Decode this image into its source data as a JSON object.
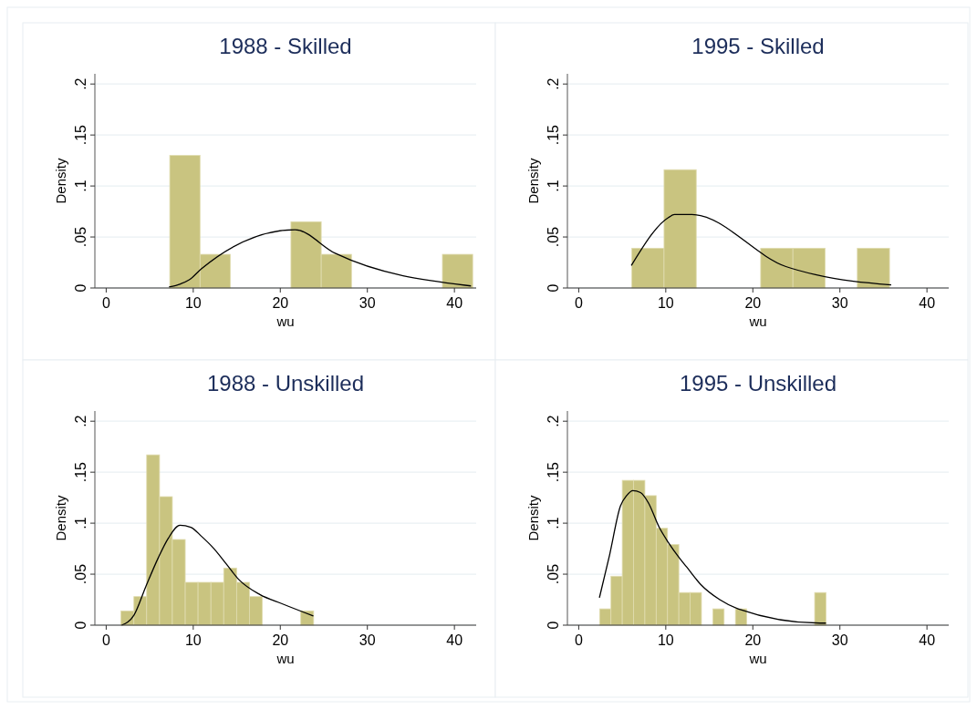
{
  "chart_data": [
    {
      "type": "histogram",
      "title": "1988 - Skilled",
      "xlabel": "wu",
      "ylabel": "Density",
      "xlim": [
        -1.3,
        42.5
      ],
      "xticks": [
        0,
        10,
        20,
        30,
        40
      ],
      "ylim": [
        0,
        0.21
      ],
      "yticks": [
        {
          "value": 0,
          "label": "0"
        },
        {
          "value": 0.05,
          "label": ".05"
        },
        {
          "value": 0.1,
          "label": ".1"
        },
        {
          "value": 0.15,
          "label": ".15"
        },
        {
          "value": 0.2,
          "label": ".2"
        }
      ],
      "grid": "y",
      "series": [
        {
          "color": "#c9c480",
          "bins": [
            7.3,
            10.78,
            14.26,
            17.74,
            21.22,
            24.7,
            28.18,
            31.66,
            35.14,
            38.62,
            42.1
          ],
          "values": [
            0.13,
            0.033,
            0,
            0,
            0.065,
            0.033,
            0,
            0,
            0,
            0.033
          ]
        },
        {
          "type": "line",
          "color": "#000000",
          "x": [
            7.22,
            8.54,
            9.54,
            10.96,
            21.7,
            26.3,
            41.9
          ],
          "values": [
            0.001,
            0.004,
            0.008,
            0.019,
            0.057,
            0.034,
            0.002
          ]
        }
      ]
    },
    {
      "type": "histogram",
      "title": "1995 - Skilled",
      "xlabel": "wu",
      "ylabel": "Density",
      "xlim": [
        -1.3,
        42.5
      ],
      "xticks": [
        0,
        10,
        20,
        30,
        40
      ],
      "ylim": [
        0,
        0.21
      ],
      "yticks": [
        {
          "value": 0,
          "label": "0"
        },
        {
          "value": 0.05,
          "label": ".05"
        },
        {
          "value": 0.1,
          "label": ".1"
        },
        {
          "value": 0.15,
          "label": ".15"
        },
        {
          "value": 0.2,
          "label": ".2"
        }
      ],
      "grid": "y",
      "series": [
        {
          "color": "#c9c480",
          "bins": [
            6.1,
            9.8,
            13.5,
            17.2,
            20.9,
            24.6,
            28.3,
            32.0,
            35.7
          ],
          "values": [
            0.039,
            0.116,
            0,
            0,
            0.039,
            0.039,
            0,
            0.039
          ]
        },
        {
          "type": "line",
          "color": "#000000",
          "x": [
            6.04,
            10.3,
            11.0,
            13.0,
            23.8,
            27.2,
            35.9
          ],
          "values": [
            0.022,
            0.069,
            0.072,
            0.072,
            0.021,
            0.013,
            0.003
          ]
        }
      ]
    },
    {
      "type": "histogram",
      "title": "1988 - Unskilled",
      "xlabel": "wu",
      "ylabel": "Density",
      "xlim": [
        -1.3,
        42.5
      ],
      "xticks": [
        0,
        10,
        20,
        30,
        40
      ],
      "ylim": [
        0,
        0.21
      ],
      "yticks": [
        {
          "value": 0,
          "label": "0"
        },
        {
          "value": 0.05,
          "label": ".05"
        },
        {
          "value": 0.1,
          "label": ".1"
        },
        {
          "value": 0.15,
          "label": ".15"
        },
        {
          "value": 0.2,
          "label": ".2"
        }
      ],
      "grid": "y",
      "series": [
        {
          "color": "#c9c480",
          "bins": [
            1.7,
            3.18,
            4.65,
            6.13,
            7.6,
            9.08,
            10.55,
            12.03,
            13.5,
            14.98,
            16.45,
            17.93,
            19.4,
            20.88,
            22.35,
            23.83
          ],
          "values": [
            0.014,
            0.028,
            0.167,
            0.126,
            0.084,
            0.042,
            0.042,
            0.042,
            0.056,
            0.042,
            0.028,
            0,
            0,
            0,
            0.014
          ]
        },
        {
          "type": "line",
          "color": "#000000",
          "x": [
            1.78,
            3.2,
            4.56,
            5.98,
            7.12,
            8.47,
            9.72,
            10.96,
            12.38,
            13.8,
            15.2,
            17.65,
            20.2,
            23.8
          ],
          "values": [
            0,
            0.01,
            0.038,
            0.066,
            0.085,
            0.098,
            0.096,
            0.087,
            0.075,
            0.06,
            0.045,
            0.03,
            0.021,
            0.009
          ]
        }
      ]
    },
    {
      "type": "histogram",
      "title": "1995 - Unskilled",
      "xlabel": "wu",
      "ylabel": "Density",
      "xlim": [
        -1.3,
        42.5
      ],
      "xticks": [
        0,
        10,
        20,
        30,
        40
      ],
      "ylim": [
        0,
        0.21
      ],
      "yticks": [
        {
          "value": 0,
          "label": "0"
        },
        {
          "value": 0.05,
          "label": ".05"
        },
        {
          "value": 0.1,
          "label": ".1"
        },
        {
          "value": 0.15,
          "label": ".15"
        },
        {
          "value": 0.2,
          "label": ".2"
        }
      ],
      "grid": "y",
      "series": [
        {
          "color": "#c9c480",
          "bins": [
            2.4,
            3.7,
            5.0,
            6.3,
            7.6,
            8.9,
            10.2,
            11.5,
            12.8,
            14.1,
            15.4,
            16.7,
            18.0,
            19.3,
            20.6,
            21.9,
            23.2,
            24.5,
            25.8,
            27.1,
            28.4
          ],
          "values": [
            0.016,
            0.048,
            0.142,
            0.142,
            0.127,
            0.095,
            0.079,
            0.032,
            0.032,
            0,
            0.016,
            0,
            0.016,
            0,
            0,
            0,
            0,
            0,
            0,
            0.032
          ]
        },
        {
          "type": "line",
          "color": "#000000",
          "x": [
            2.38,
            3.55,
            4.8,
            5.5,
            6.22,
            7.1,
            8.0,
            9.24,
            10.3,
            11.55,
            12.4,
            14.0,
            16.2,
            18.3,
            27.7,
            28.4
          ],
          "values": [
            0.027,
            0.069,
            0.117,
            0.127,
            0.132,
            0.13,
            0.12,
            0.096,
            0.081,
            0.066,
            0.057,
            0.04,
            0.025,
            0.016,
            0.002,
            0.002
          ]
        }
      ]
    }
  ]
}
